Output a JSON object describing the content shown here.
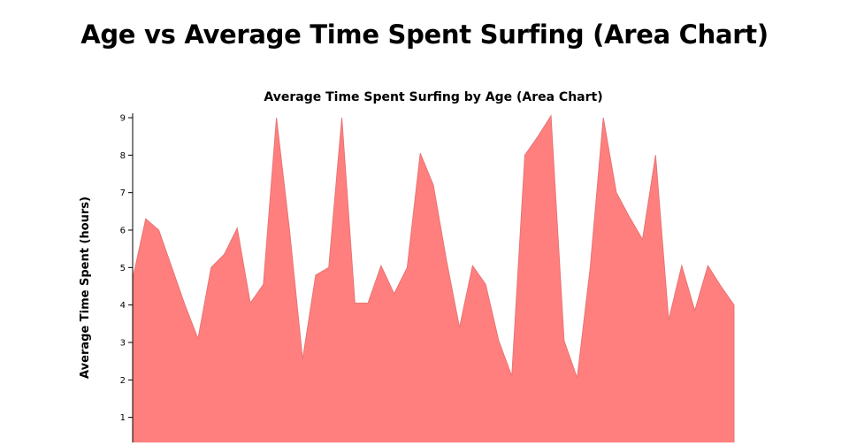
{
  "page": {
    "title": "Age vs Average Time Spent Surfing (Area Chart)"
  },
  "chart_data": {
    "type": "area",
    "title": "Average Time Spent Surfing by Age (Area Chart)",
    "xlabel": "",
    "ylabel": "Average Time Spent (hours)",
    "ylim": [
      0,
      9
    ],
    "yticks": [
      1,
      2,
      3,
      4,
      5,
      6,
      7,
      8,
      9
    ],
    "grid": false,
    "fill_color": "#ff7f7f",
    "stroke_color": "#e87474",
    "x": [
      0,
      1,
      2,
      3,
      4,
      5,
      6,
      7,
      8,
      9,
      10,
      11,
      12,
      13,
      14,
      15,
      16,
      17,
      18,
      19,
      20,
      21,
      22,
      23,
      24,
      25,
      26,
      27,
      28,
      29,
      30,
      31,
      32,
      33,
      34,
      35,
      36,
      37,
      38,
      39,
      40,
      41,
      42,
      43,
      44,
      45,
      46
    ],
    "values": [
      4.7,
      6.3,
      6.0,
      5.0,
      4.0,
      3.1,
      5.0,
      5.35,
      6.05,
      4.05,
      4.55,
      9.0,
      6.0,
      2.55,
      4.8,
      5.0,
      9.0,
      4.05,
      4.05,
      5.05,
      4.3,
      5.0,
      8.05,
      7.2,
      5.2,
      3.4,
      5.05,
      4.55,
      3.05,
      2.1,
      8.0,
      8.5,
      9.05,
      3.05,
      2.05,
      5.0,
      9.0,
      7.0,
      6.35,
      5.75,
      8.0,
      3.6,
      5.05,
      3.85,
      5.05,
      4.5,
      4.0
    ]
  }
}
